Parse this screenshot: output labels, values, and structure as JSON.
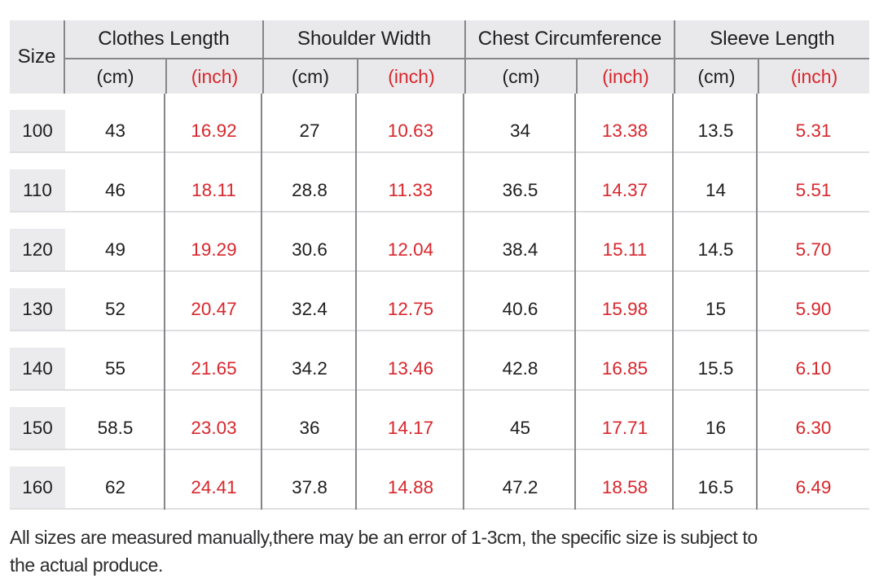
{
  "table": {
    "size_header": "Size",
    "groups": [
      {
        "label": "Clothes Length"
      },
      {
        "label": "Shoulder Width"
      },
      {
        "label": "Chest Circumference"
      },
      {
        "label": "Sleeve Length"
      }
    ],
    "unit_cm": "(cm)",
    "unit_inch": "(inch)",
    "rows": [
      {
        "size": "100",
        "values": [
          "43",
          "16.92",
          "27",
          "10.63",
          "34",
          "13.38",
          "13.5",
          "5.31"
        ]
      },
      {
        "size": "110",
        "values": [
          "46",
          "18.11",
          "28.8",
          "11.33",
          "36.5",
          "14.37",
          "14",
          "5.51"
        ]
      },
      {
        "size": "120",
        "values": [
          "49",
          "19.29",
          "30.6",
          "12.04",
          "38.4",
          "15.11",
          "14.5",
          "5.70"
        ]
      },
      {
        "size": "130",
        "values": [
          "52",
          "20.47",
          "32.4",
          "12.75",
          "40.6",
          "15.98",
          "15",
          "5.90"
        ]
      },
      {
        "size": "140",
        "values": [
          "55",
          "21.65",
          "34.2",
          "13.46",
          "42.8",
          "16.85",
          "15.5",
          "6.10"
        ]
      },
      {
        "size": "150",
        "values": [
          "58.5",
          "23.03",
          "36",
          "14.17",
          "45",
          "17.71",
          "16",
          "6.30"
        ]
      },
      {
        "size": "160",
        "values": [
          "62",
          "24.41",
          "37.8",
          "14.88",
          "47.2",
          "18.58",
          "16.5",
          "6.49"
        ]
      }
    ]
  },
  "footer": {
    "lines": [
      "All sizes are measured manually,there may be an error of 1-3cm, the specific size is subject to",
      "the actual produce."
    ]
  },
  "colors": {
    "accent_red": "#d8262c",
    "header_bg": "#e9e9eb",
    "size_cell_bg": "#ebebed",
    "grid_dark": "#85868a",
    "grid_light": "#dfdfe1",
    "text": "#1e1e20"
  },
  "chart_data": {
    "type": "table",
    "title": "Garment size chart",
    "columns": [
      "Size",
      "Clothes Length (cm)",
      "Clothes Length (inch)",
      "Shoulder Width (cm)",
      "Shoulder Width (inch)",
      "Chest Circumference (cm)",
      "Chest Circumference (inch)",
      "Sleeve Length (cm)",
      "Sleeve Length (inch)"
    ],
    "rows": [
      [
        100,
        43,
        16.92,
        27,
        10.63,
        34,
        13.38,
        13.5,
        5.31
      ],
      [
        110,
        46,
        18.11,
        28.8,
        11.33,
        36.5,
        14.37,
        14,
        5.51
      ],
      [
        120,
        49,
        19.29,
        30.6,
        12.04,
        38.4,
        15.11,
        14.5,
        5.7
      ],
      [
        130,
        52,
        20.47,
        32.4,
        12.75,
        40.6,
        15.98,
        15,
        5.9
      ],
      [
        140,
        55,
        21.65,
        34.2,
        13.46,
        42.8,
        16.85,
        15.5,
        6.1
      ],
      [
        150,
        58.5,
        23.03,
        36,
        14.17,
        45,
        17.71,
        16,
        6.3
      ],
      [
        160,
        62,
        24.41,
        37.8,
        14.88,
        47.2,
        18.58,
        16.5,
        6.49
      ]
    ],
    "note": "All sizes are measured manually,there may be an error of 1-3cm, the specific size is subject to the actual produce."
  }
}
